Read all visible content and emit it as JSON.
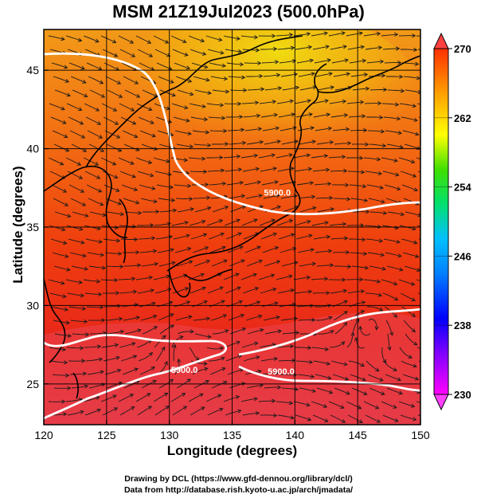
{
  "title": "MSM 21Z19Jul2023 (500.0hPa)",
  "xlabel": "Longitude (degrees)",
  "ylabel": "Latitude  (degrees)",
  "credits": {
    "line1": "Drawing by DCL (https://www.gfd-dennou.org/library/dcl/)",
    "line2": "Data from http://database.rish.kyoto-u.ac.jp/arch/jmadata/"
  },
  "map": {
    "lon_range": [
      120,
      150
    ],
    "lat_range": [
      22.4,
      47.6
    ],
    "lon_ticks": [
      120,
      125,
      130,
      135,
      140,
      145,
      150
    ],
    "lat_ticks": [
      25,
      30,
      35,
      40,
      45
    ],
    "lon_tick_labels": [
      "120",
      "125",
      "130",
      "135",
      "140",
      "145",
      "150"
    ],
    "lat_tick_labels": [
      "25",
      "30",
      "35",
      "40",
      "45"
    ],
    "contour_labels": [
      {
        "text": "5900.0",
        "lon": 138.6,
        "lat": 37.0
      },
      {
        "text": "5900.0",
        "lon": 131.2,
        "lat": 25.7
      },
      {
        "text": "5900.0",
        "lon": 138.9,
        "lat": 25.6
      }
    ]
  },
  "colorbar": {
    "min": 230,
    "max": 270,
    "tick_values": [
      270,
      262,
      254,
      246,
      238,
      230
    ],
    "tick_labels": [
      "270",
      "262",
      "254",
      "246",
      "238",
      "230"
    ],
    "colors": [
      "#ff00ff",
      "#0000ff",
      "#00c0ff",
      "#00e070",
      "#40e000",
      "#ffff00",
      "#ffa000",
      "#ff3000"
    ]
  }
}
